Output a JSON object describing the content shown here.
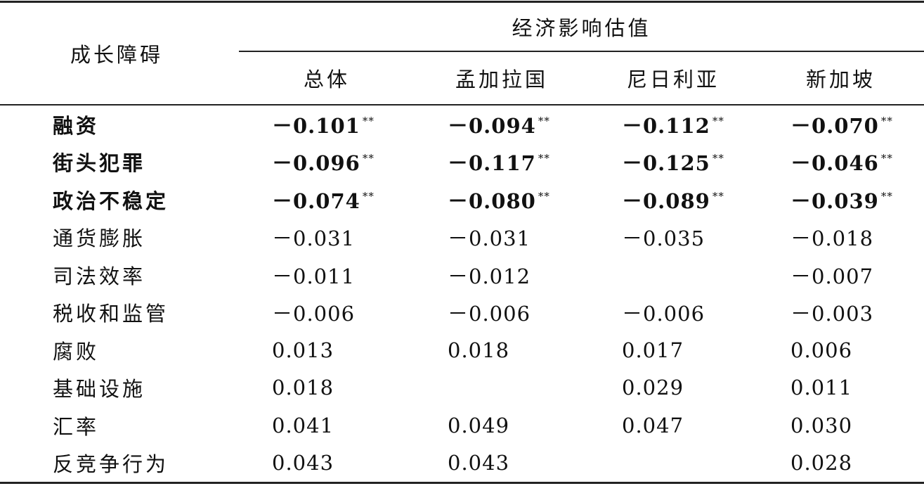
{
  "table": {
    "row_header": "成长障碍",
    "group_header": "经济影响估值",
    "columns": [
      "总体",
      "孟加拉国",
      "尼日利亚",
      "新加坡"
    ],
    "rows": [
      {
        "label": "融资",
        "bold": true,
        "cells": [
          {
            "text": "－0.101",
            "sig": "**"
          },
          {
            "text": "－0.094",
            "sig": "**"
          },
          {
            "text": "－0.112",
            "sig": "**"
          },
          {
            "text": "－0.070",
            "sig": "**"
          }
        ]
      },
      {
        "label": "街头犯罪",
        "bold": true,
        "cells": [
          {
            "text": "－0.096",
            "sig": "**"
          },
          {
            "text": "－0.117",
            "sig": "**"
          },
          {
            "text": "－0.125",
            "sig": "**"
          },
          {
            "text": "－0.046",
            "sig": "**"
          }
        ]
      },
      {
        "label": "政治不稳定",
        "bold": true,
        "cells": [
          {
            "text": "－0.074",
            "sig": "**"
          },
          {
            "text": "－0.080",
            "sig": "**"
          },
          {
            "text": "－0.089",
            "sig": "**"
          },
          {
            "text": "－0.039",
            "sig": "**"
          }
        ]
      },
      {
        "label": "通货膨胀",
        "bold": false,
        "cells": [
          {
            "text": "－0.031"
          },
          {
            "text": "－0.031"
          },
          {
            "text": "－0.035"
          },
          {
            "text": "－0.018"
          }
        ]
      },
      {
        "label": "司法效率",
        "bold": false,
        "cells": [
          {
            "text": "－0.011"
          },
          {
            "text": "－0.012"
          },
          null,
          {
            "text": "－0.007"
          }
        ]
      },
      {
        "label": "税收和监管",
        "bold": false,
        "cells": [
          {
            "text": "－0.006"
          },
          {
            "text": "－0.006"
          },
          {
            "text": "－0.006"
          },
          {
            "text": "－0.003"
          }
        ]
      },
      {
        "label": "腐败",
        "bold": false,
        "cells": [
          {
            "text": "0.013"
          },
          {
            "text": "0.018"
          },
          {
            "text": "0.017"
          },
          {
            "text": "0.006"
          }
        ]
      },
      {
        "label": "基础设施",
        "bold": false,
        "cells": [
          {
            "text": "0.018"
          },
          null,
          {
            "text": "0.029"
          },
          {
            "text": "0.011"
          }
        ]
      },
      {
        "label": "汇率",
        "bold": false,
        "cells": [
          {
            "text": "0.041"
          },
          {
            "text": "0.049"
          },
          {
            "text": "0.047"
          },
          {
            "text": "0.030"
          }
        ]
      },
      {
        "label": "反竞争行为",
        "bold": false,
        "cells": [
          {
            "text": "0.043"
          },
          {
            "text": "0.043"
          },
          null,
          {
            "text": "0.028"
          }
        ]
      }
    ]
  }
}
